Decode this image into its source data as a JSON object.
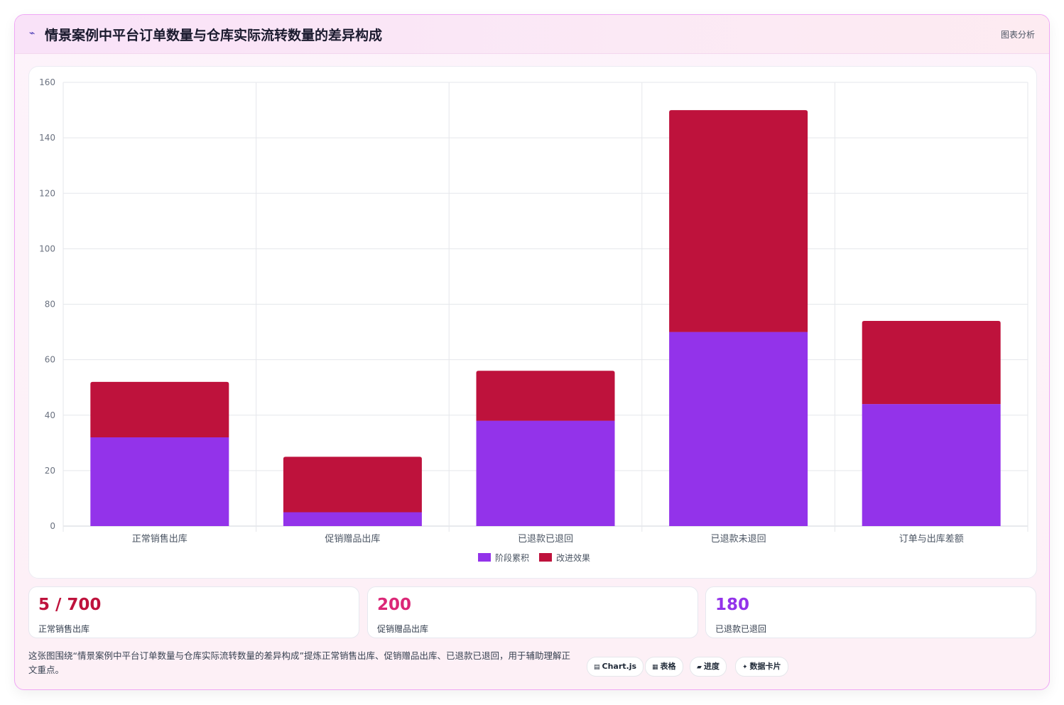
{
  "header": {
    "icon": "sparkline-icon",
    "title": "情景案例中平台订单数量与仓库实际流转数量的差异构成",
    "action_label": "图表分析"
  },
  "chart_data": {
    "type": "bar",
    "stacked": true,
    "categories": [
      "正常销售出库",
      "促销赠品出库",
      "已退款已退回",
      "已退款未退回",
      "订单与出库差额"
    ],
    "series": [
      {
        "name": "阶段累积",
        "color": "#9333ea",
        "values": [
          32,
          5,
          38,
          70,
          44
        ]
      },
      {
        "name": "改进效果",
        "color": "#be123c",
        "values": [
          20,
          20,
          18,
          80,
          30
        ]
      }
    ],
    "ylim": [
      0,
      160
    ],
    "yticks": [
      0,
      20,
      40,
      60,
      80,
      100,
      120,
      140,
      160
    ],
    "grid": true,
    "legend": "bottom"
  },
  "stats": [
    {
      "value": "5 / 700",
      "label": "正常销售出库",
      "color": "#be123c"
    },
    {
      "value": "200",
      "label": "促销赠品出库",
      "color": "#db2777"
    },
    {
      "value": "180",
      "label": "已退款已退回",
      "color": "#9333ea"
    }
  ],
  "description": "这张图围绕“情景案例中平台订单数量与仓库实际流转数量的差异构成”提炼正常销售出库、促销赠品出库、已退款已退回，用于辅助理解正文重点。",
  "chips": [
    {
      "icon": "chart-icon",
      "glyph": "▤",
      "label": "Chart.js"
    },
    {
      "icon": "table-icon",
      "glyph": "▦",
      "label": "表格"
    },
    {
      "icon": "progress-icon",
      "glyph": "▰",
      "label": "进度"
    },
    {
      "icon": "card-icon",
      "glyph": "✦",
      "label": "数据卡片"
    }
  ]
}
